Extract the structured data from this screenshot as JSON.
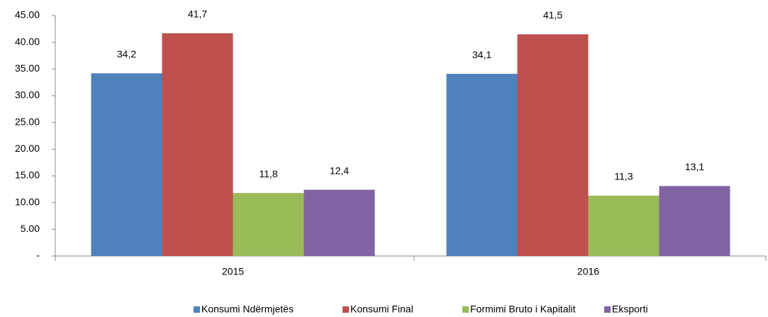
{
  "chart_data": {
    "type": "bar",
    "categories": [
      "2015",
      "2016"
    ],
    "series": [
      {
        "name": "Konsumi Ndërmjetës",
        "color": "#4f81bd",
        "values": [
          34.2,
          34.1
        ],
        "value_labels": [
          "34,2",
          "34,1"
        ]
      },
      {
        "name": "Konsumi Final",
        "color": "#c0504d",
        "values": [
          41.7,
          41.5
        ],
        "value_labels": [
          "41,7",
          "41,5"
        ]
      },
      {
        "name": "Formimi Bruto i Kapitalit",
        "color": "#9bbb59",
        "values": [
          11.8,
          11.3
        ],
        "value_labels": [
          "11,8",
          "11,3"
        ]
      },
      {
        "name": "Eksporti",
        "color": "#8064a2",
        "values": [
          12.4,
          13.1
        ],
        "value_labels": [
          "12,4",
          "13,1"
        ]
      }
    ],
    "ylim": [
      0,
      45
    ],
    "yticks": [
      {
        "value": 0,
        "label": "-"
      },
      {
        "value": 5,
        "label": "5.00"
      },
      {
        "value": 10,
        "label": "10.00"
      },
      {
        "value": 15,
        "label": "15.00"
      },
      {
        "value": 20,
        "label": "20.00"
      },
      {
        "value": 25,
        "label": "25.00"
      },
      {
        "value": 30,
        "label": "30.00"
      },
      {
        "value": 35,
        "label": "35.00"
      },
      {
        "value": 40,
        "label": "40.00"
      },
      {
        "value": 45,
        "label": "45.00"
      }
    ],
    "grid": false,
    "legend": "bottom"
  }
}
